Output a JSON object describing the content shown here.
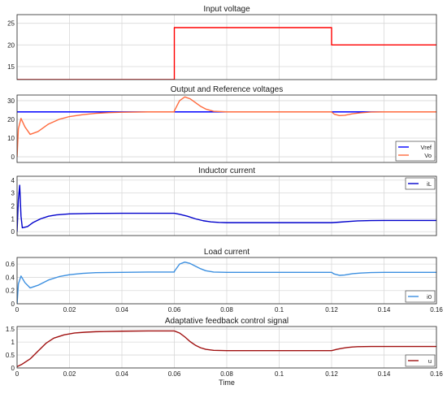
{
  "figure": {
    "background": "#ffffff",
    "grid_color": "#d9d9d9",
    "axis_color": "#262626",
    "text_color": "#1a1a1a"
  },
  "chart_data": [
    {
      "type": "line",
      "title": "Input voltage",
      "xlabel": "",
      "ylabel": "",
      "xlim": [
        0,
        0.16
      ],
      "ylim": [
        12,
        27
      ],
      "xticks": [],
      "yticks": [
        15,
        20,
        25
      ],
      "grid": true,
      "legend": null,
      "series": [
        {
          "name": "",
          "color": "#ff0000",
          "x": [
            0,
            0.06,
            0.06,
            0.12,
            0.12,
            0.16
          ],
          "y": [
            12,
            12,
            24,
            24,
            20,
            20
          ]
        }
      ]
    },
    {
      "type": "line",
      "title": "Output and Reference voltages",
      "xlabel": "",
      "ylabel": "",
      "xlim": [
        0,
        0.16
      ],
      "ylim": [
        -3,
        33
      ],
      "xticks": [],
      "yticks": [
        0,
        10,
        20,
        30
      ],
      "grid": true,
      "legend": {
        "position": "bottom-right"
      },
      "series": [
        {
          "name": "Vref",
          "color": "#0000ff",
          "x": [
            0,
            0.16
          ],
          "y": [
            24,
            24
          ]
        },
        {
          "name": "Vo",
          "color": "#ff6a3d",
          "x": [
            0,
            0.0005,
            0.0015,
            0.003,
            0.005,
            0.008,
            0.012,
            0.016,
            0.02,
            0.025,
            0.03,
            0.035,
            0.04,
            0.05,
            0.06,
            0.06,
            0.062,
            0.064,
            0.066,
            0.068,
            0.07,
            0.072,
            0.075,
            0.08,
            0.1,
            0.12,
            0.121,
            0.123,
            0.125,
            0.128,
            0.131,
            0.135,
            0.14,
            0.16
          ],
          "y": [
            0,
            15,
            20.5,
            16,
            12,
            13.5,
            17.5,
            20,
            21.5,
            22.5,
            23.2,
            23.6,
            23.8,
            24,
            24,
            24.5,
            30,
            32,
            31,
            29,
            27,
            25.5,
            24.3,
            24,
            24,
            24,
            22.8,
            22,
            22.2,
            23,
            23.5,
            23.9,
            24,
            24
          ]
        }
      ]
    },
    {
      "type": "line",
      "title": "Inductor current",
      "xlabel": "",
      "ylabel": "",
      "xlim": [
        0,
        0.16
      ],
      "ylim": [
        -0.3,
        4.3
      ],
      "xticks": [],
      "yticks": [
        0,
        1,
        2,
        3,
        4
      ],
      "grid": true,
      "legend": {
        "position": "top-right"
      },
      "series": [
        {
          "name": "iL",
          "color": "#0000cc",
          "x": [
            0,
            0.0005,
            0.001,
            0.0015,
            0.002,
            0.004,
            0.006,
            0.009,
            0.012,
            0.015,
            0.02,
            0.03,
            0.04,
            0.05,
            0.06,
            0.062,
            0.065,
            0.068,
            0.071,
            0.074,
            0.077,
            0.08,
            0.1,
            0.12,
            0.123,
            0.127,
            0.13,
            0.135,
            0.14,
            0.16
          ],
          "y": [
            0,
            2.5,
            3.6,
            1.2,
            0.3,
            0.4,
            0.7,
            1.0,
            1.2,
            1.3,
            1.38,
            1.42,
            1.43,
            1.43,
            1.43,
            1.35,
            1.2,
            1.0,
            0.85,
            0.76,
            0.72,
            0.7,
            0.7,
            0.7,
            0.74,
            0.8,
            0.84,
            0.86,
            0.87,
            0.87
          ]
        }
      ]
    },
    {
      "type": "line",
      "title": "Load current",
      "xlabel": "",
      "ylabel": "",
      "xlim": [
        0,
        0.16
      ],
      "ylim": [
        0,
        0.7
      ],
      "xticks": [
        0,
        0.02,
        0.04,
        0.06,
        0.08,
        0.1,
        0.12,
        0.14,
        0.16
      ],
      "yticks": [
        0,
        0.2,
        0.4,
        0.6
      ],
      "grid": true,
      "legend": {
        "position": "bottom-right"
      },
      "series": [
        {
          "name": "i0",
          "color": "#3b8fe0",
          "x": [
            0,
            0.0005,
            0.0015,
            0.003,
            0.005,
            0.008,
            0.012,
            0.016,
            0.02,
            0.025,
            0.03,
            0.04,
            0.05,
            0.06,
            0.06,
            0.062,
            0.064,
            0.066,
            0.068,
            0.07,
            0.072,
            0.075,
            0.08,
            0.1,
            0.12,
            0.121,
            0.123,
            0.125,
            0.128,
            0.131,
            0.135,
            0.14,
            0.16
          ],
          "y": [
            0,
            0.3,
            0.42,
            0.32,
            0.24,
            0.28,
            0.36,
            0.41,
            0.44,
            0.46,
            0.47,
            0.475,
            0.48,
            0.48,
            0.49,
            0.6,
            0.63,
            0.61,
            0.57,
            0.53,
            0.5,
            0.48,
            0.475,
            0.475,
            0.475,
            0.45,
            0.43,
            0.435,
            0.455,
            0.465,
            0.472,
            0.475,
            0.475
          ]
        }
      ]
    },
    {
      "type": "line",
      "title": "Adaptative feedback control signal",
      "xlabel": "Time",
      "ylabel": "",
      "xlim": [
        0,
        0.16
      ],
      "ylim": [
        0,
        1.6
      ],
      "xticks": [
        0,
        0.02,
        0.04,
        0.06,
        0.08,
        0.1,
        0.12,
        0.14,
        0.16
      ],
      "yticks": [
        0,
        0.5,
        1,
        1.5
      ],
      "grid": true,
      "legend": {
        "position": "bottom-right"
      },
      "series": [
        {
          "name": "u",
          "color": "#a01010",
          "x": [
            0,
            0.002,
            0.005,
            0.008,
            0.011,
            0.014,
            0.018,
            0.022,
            0.026,
            0.03,
            0.04,
            0.05,
            0.06,
            0.062,
            0.064,
            0.066,
            0.068,
            0.07,
            0.072,
            0.075,
            0.08,
            0.1,
            0.12,
            0.122,
            0.124,
            0.126,
            0.128,
            0.13,
            0.135,
            0.14,
            0.16
          ],
          "y": [
            0.05,
            0.15,
            0.35,
            0.65,
            0.95,
            1.15,
            1.28,
            1.35,
            1.38,
            1.4,
            1.42,
            1.43,
            1.43,
            1.35,
            1.2,
            1.02,
            0.88,
            0.78,
            0.72,
            0.68,
            0.67,
            0.67,
            0.67,
            0.72,
            0.76,
            0.79,
            0.81,
            0.82,
            0.83,
            0.83,
            0.83
          ]
        }
      ]
    }
  ]
}
